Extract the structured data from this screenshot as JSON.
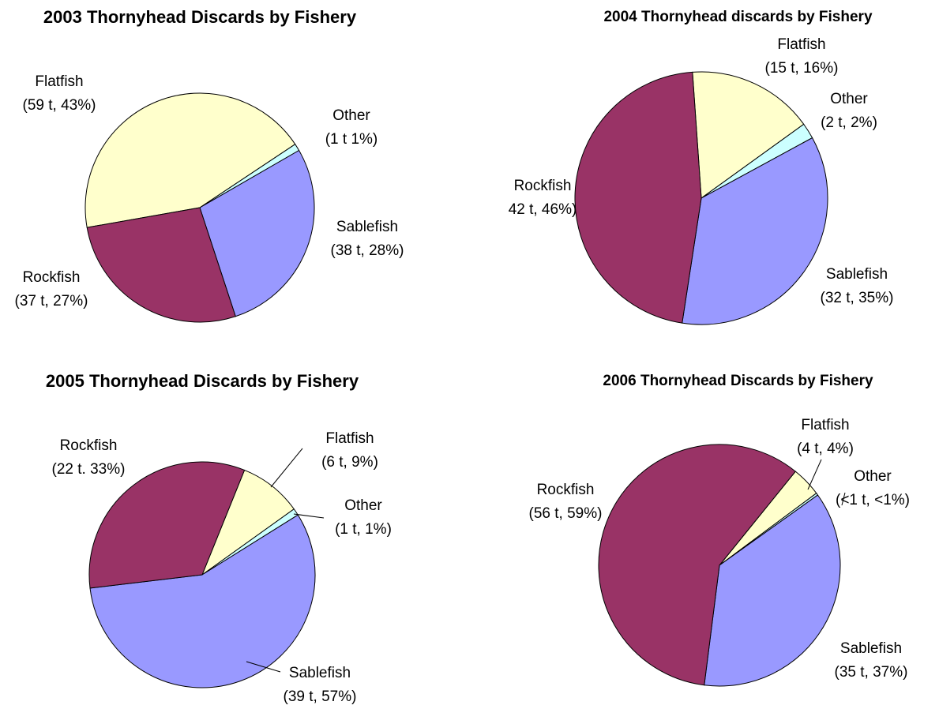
{
  "chart_data": [
    {
      "type": "pie",
      "title": "2003 Thornyhead Discards by Fishery",
      "categories": [
        "Flatfish",
        "Other",
        "Sablefish",
        "Rockfish"
      ],
      "values": [
        43,
        1,
        28,
        27
      ],
      "value_labels": [
        "(59 t, 43%)",
        "(1 t 1%)",
        "(38 t, 28%)",
        "(37 t, 27%)"
      ],
      "colors": [
        "#ffffcc",
        "#ccffff",
        "#9999ff",
        "#993366"
      ]
    },
    {
      "type": "pie",
      "title": "2004 Thornyhead discards by Fishery",
      "categories": [
        "Flatfish",
        "Other",
        "Sablefish",
        "Rockfish"
      ],
      "values": [
        16,
        2,
        35,
        46
      ],
      "value_labels": [
        "(15 t, 16%)",
        "(2 t, 2%)",
        "(32 t, 35%)",
        "42 t, 46%)"
      ],
      "colors": [
        "#ffffcc",
        "#ccffff",
        "#9999ff",
        "#993366"
      ]
    },
    {
      "type": "pie",
      "title": "2005 Thornyhead Discards by Fishery",
      "categories": [
        "Flatfish",
        "Other",
        "Sablefish",
        "Rockfish"
      ],
      "values": [
        9,
        1,
        57,
        33
      ],
      "value_labels": [
        "(6 t, 9%)",
        "(1 t, 1%)",
        "(39 t, 57%)",
        "(22 t. 33%)"
      ],
      "colors": [
        "#ffffcc",
        "#ccffff",
        "#9999ff",
        "#993366"
      ]
    },
    {
      "type": "pie",
      "title": "2006 Thornyhead Discards by Fishery",
      "categories": [
        "Flatfish",
        "Other",
        "Sablefish",
        "Rockfish"
      ],
      "values": [
        4,
        0.3,
        37,
        59
      ],
      "value_labels": [
        "(4 t, 4%)",
        "(<1 t, <1%)",
        "(35 t, 37%)",
        "(56 t, 59%)"
      ],
      "colors": [
        "#ffffcc",
        "#ccffff",
        "#9999ff",
        "#993366"
      ]
    }
  ]
}
